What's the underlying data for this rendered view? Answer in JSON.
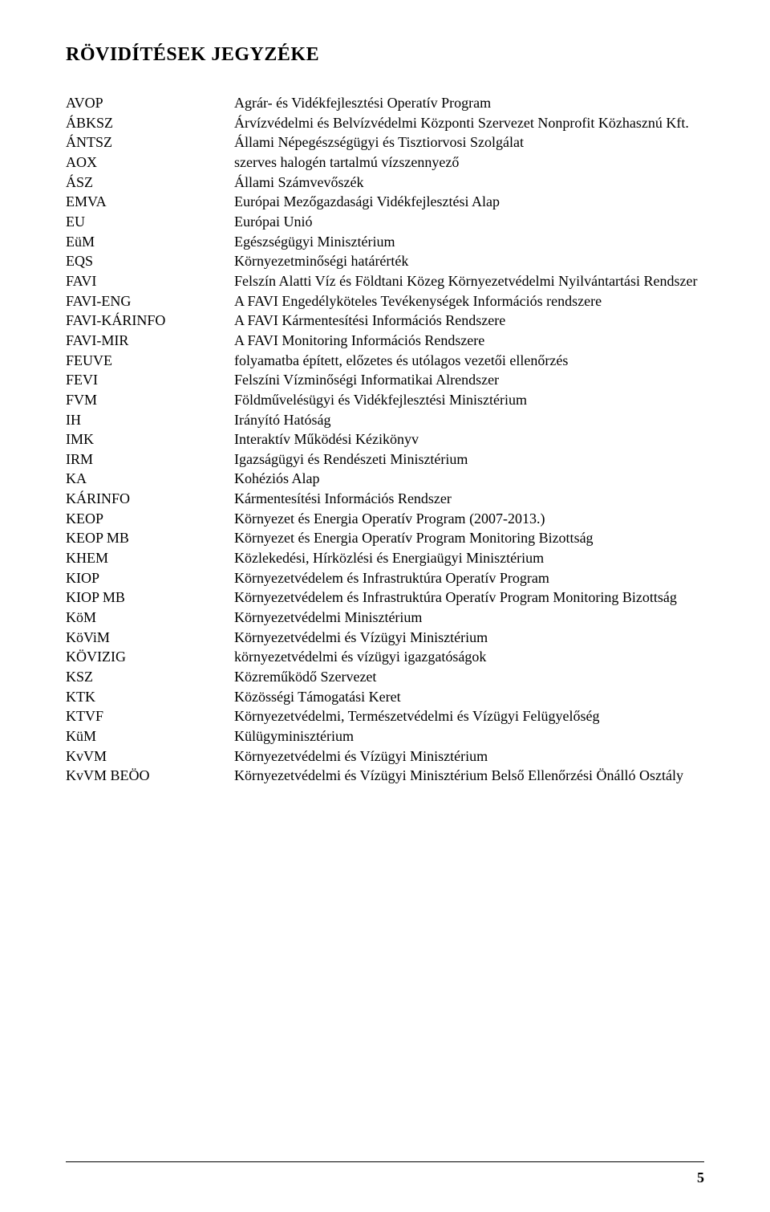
{
  "heading": "RÖVIDÍTÉSEK JEGYZÉKE",
  "page_number": "5",
  "entries": [
    {
      "abbr": "AVOP",
      "def": "Agrár- és Vidékfejlesztési Operatív Program"
    },
    {
      "abbr": "ÁBKSZ",
      "def": "Árvízvédelmi és Belvízvédelmi Központi Szervezet Nonprofit Közhasznú Kft."
    },
    {
      "abbr": "ÁNTSZ",
      "def": "Állami Népegészségügyi és Tisztiorvosi Szolgálat"
    },
    {
      "abbr": "AOX",
      "def": "szerves halogén tartalmú vízszennyező"
    },
    {
      "abbr": "ÁSZ",
      "def": "Állami Számvevőszék"
    },
    {
      "abbr": "EMVA",
      "def": "Európai Mezőgazdasági Vidékfejlesztési Alap"
    },
    {
      "abbr": "EU",
      "def": "Európai Unió"
    },
    {
      "abbr": "EüM",
      "def": "Egészségügyi Minisztérium"
    },
    {
      "abbr": "EQS",
      "def": "Környezetminőségi határérték"
    },
    {
      "abbr": "FAVI",
      "def": "Felszín Alatti Víz és Földtani Közeg Környezetvédelmi Nyilvántartási Rendszer"
    },
    {
      "abbr": "FAVI-ENG",
      "def": "A FAVI Engedélyköteles Tevékenységek Információs rendszere"
    },
    {
      "abbr": "FAVI-KÁRINFO",
      "def": "A FAVI Kármentesítési Információs Rendszere"
    },
    {
      "abbr": "FAVI-MIR",
      "def": "A FAVI Monitoring Információs Rendszere"
    },
    {
      "abbr": "FEUVE",
      "def": "folyamatba épített, előzetes és utólagos vezetői ellenőrzés"
    },
    {
      "abbr": "FEVI",
      "def": "Felszíni Vízminőségi Informatikai Alrendszer"
    },
    {
      "abbr": "FVM",
      "def": "Földművelésügyi és Vidékfejlesztési Minisztérium"
    },
    {
      "abbr": "IH",
      "def": "Irányító Hatóság"
    },
    {
      "abbr": "IMK",
      "def": "Interaktív Működési Kézikönyv"
    },
    {
      "abbr": "IRM",
      "def": "Igazságügyi és Rendészeti Minisztérium"
    },
    {
      "abbr": "KA",
      "def": "Kohéziós Alap"
    },
    {
      "abbr": "KÁRINFO",
      "def": "Kármentesítési Információs Rendszer"
    },
    {
      "abbr": "KEOP",
      "def": "Környezet és Energia Operatív Program (2007-2013.)"
    },
    {
      "abbr": "KEOP MB",
      "def": "Környezet és Energia Operatív Program Monitoring Bizottság"
    },
    {
      "abbr": "KHEM",
      "def": "Közlekedési, Hírközlési és Energiaügyi Minisztérium"
    },
    {
      "abbr": "KIOP",
      "def": "Környezetvédelem és Infrastruktúra Operatív Program"
    },
    {
      "abbr": "KIOP MB",
      "def": "Környezetvédelem és Infrastruktúra Operatív Program Monitoring Bizottság"
    },
    {
      "abbr": "KöM",
      "def": "Környezetvédelmi Minisztérium"
    },
    {
      "abbr": "KöViM",
      "def": "Környezetvédelmi és Vízügyi Minisztérium"
    },
    {
      "abbr": "KÖVIZIG",
      "def": "környezetvédelmi és vízügyi igazgatóságok"
    },
    {
      "abbr": "KSZ",
      "def": "Közreműködő Szervezet"
    },
    {
      "abbr": "KTK",
      "def": "Közösségi Támogatási Keret"
    },
    {
      "abbr": "KTVF",
      "def": "Környezetvédelmi, Természetvédelmi és Vízügyi Felügyelőség"
    },
    {
      "abbr": "KüM",
      "def": "Külügyminisztérium"
    },
    {
      "abbr": "KvVM",
      "def": "Környezetvédelmi és Vízügyi Minisztérium"
    },
    {
      "abbr": "KvVM BEÖO",
      "def": "Környezetvédelmi és Vízügyi Minisztérium Belső Ellenőrzési Önálló Osztály"
    }
  ]
}
